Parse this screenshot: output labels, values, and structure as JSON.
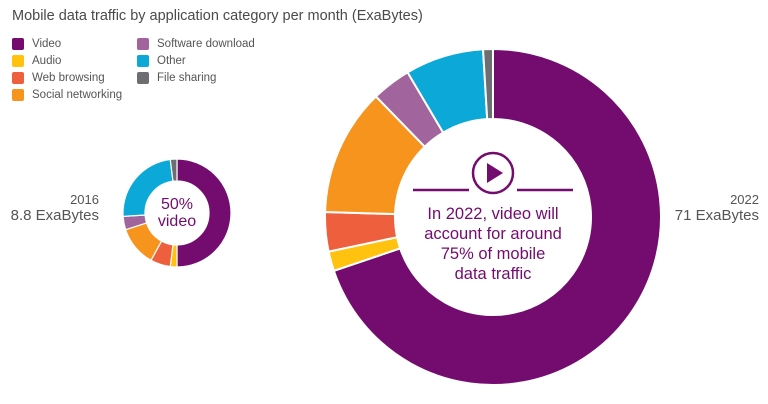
{
  "chart_data": {
    "type": "donut",
    "title": "Mobile data traffic by application category per month (ExaBytes)",
    "categories": [
      "Video",
      "Audio",
      "Web browsing",
      "Social networking",
      "Software download",
      "Other",
      "File sharing"
    ],
    "colors": [
      "#730C6E",
      "#FFC20E",
      "#EE5F3D",
      "#F7941D",
      "#A2649C",
      "#0BA8D8",
      "#6D6E71"
    ],
    "legend_position": "top-left",
    "series": [
      {
        "name": "2016",
        "total_label": "8.8 ExaBytes",
        "center_text": [
          "50%",
          "video"
        ],
        "values": [
          50,
          2,
          6,
          12,
          4,
          24,
          2
        ]
      },
      {
        "name": "2022",
        "total_label": "71 ExaBytes",
        "center_text": [
          "In 2022, video will",
          "account for around",
          "75% of mobile",
          "data traffic"
        ],
        "values": [
          74,
          2,
          4,
          13,
          4,
          8,
          1
        ]
      }
    ]
  }
}
